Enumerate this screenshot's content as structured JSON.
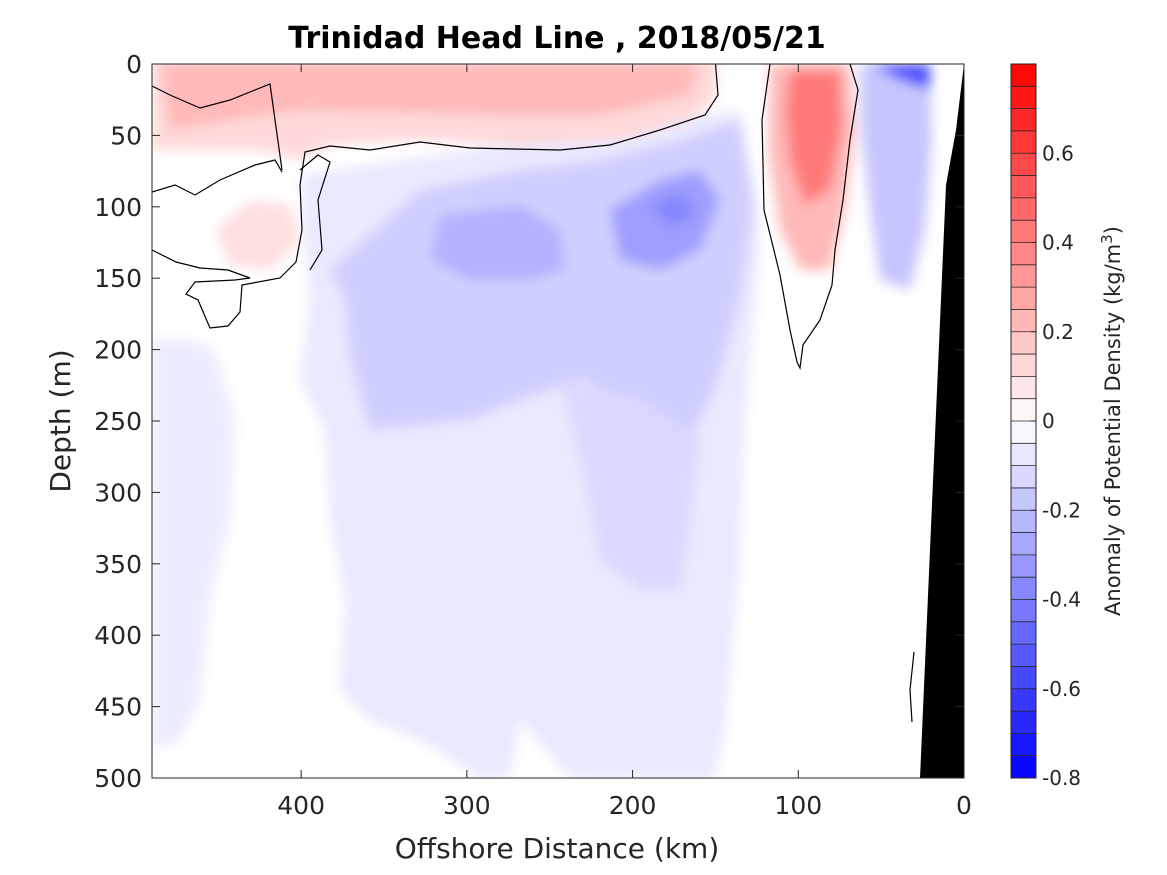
{
  "chart_data": {
    "type": "contour",
    "title": "Trinidad Head Line , 2018/05/21",
    "xlabel": "Offshore Distance (km)",
    "ylabel": "Depth (m)",
    "colorbar_label": "Anomaly of Potential Density (kg/m",
    "colorbar_label_sup": "3",
    "colorbar_label_end": ")",
    "x_axis_reversed": true,
    "xlim": [
      490,
      0
    ],
    "ylim": [
      500,
      0
    ],
    "y_axis_reversed": true,
    "x_ticks": [
      400,
      300,
      200,
      100,
      0
    ],
    "x_tick_labels": [
      "400",
      "300",
      "200",
      "100",
      "0"
    ],
    "y_ticks": [
      0,
      50,
      100,
      150,
      200,
      250,
      300,
      350,
      400,
      450,
      500
    ],
    "y_tick_labels": [
      "0",
      "50",
      "100",
      "150",
      "200",
      "250",
      "300",
      "350",
      "400",
      "450",
      "500"
    ],
    "colorbar_range": [
      -0.8,
      0.8
    ],
    "colorbar_ticks": [
      0.6,
      0.4,
      0.2,
      0,
      -0.2,
      -0.4,
      -0.6,
      -0.8
    ],
    "colorbar_tick_labels": [
      "0.6",
      "0.4",
      "0.2",
      "0",
      "-0.2",
      "-0.4",
      "-0.6",
      "-0.8"
    ],
    "colorbar_levels": 32,
    "colormap": {
      "positive": "#ff0000",
      "zero": "#ffffff",
      "negative": "#0000ff"
    },
    "zero_contour_color": "#000000",
    "bathymetry_color": "#000000",
    "features": [
      {
        "name": "surface warm-red layer",
        "x_range": [
          490,
          150
        ],
        "depth_range": [
          0,
          60
        ],
        "peak_value": 0.2
      },
      {
        "name": "subsurface red patch",
        "x_center": 420,
        "depth_center": 112,
        "peak_value": 0.12
      },
      {
        "name": "nearshore red column",
        "x_center": 90,
        "depth_center": 60,
        "peak_value": 0.45
      },
      {
        "name": "blue core A",
        "x_center": 175,
        "depth_center": 100,
        "peak_value": -0.35
      },
      {
        "name": "blue core B",
        "x_center": 270,
        "depth_center": 120,
        "peak_value": -0.25
      },
      {
        "name": "surface blue",
        "x_center": 40,
        "depth_center": 5,
        "peak_value": -0.5
      },
      {
        "name": "nearshore blue column",
        "x_center": 40,
        "depth_center": 120,
        "peak_value": -0.2
      },
      {
        "name": "deep light blue field",
        "x_range": [
          490,
          30
        ],
        "depth_range": [
          150,
          500
        ],
        "peak_value": -0.08
      }
    ]
  }
}
